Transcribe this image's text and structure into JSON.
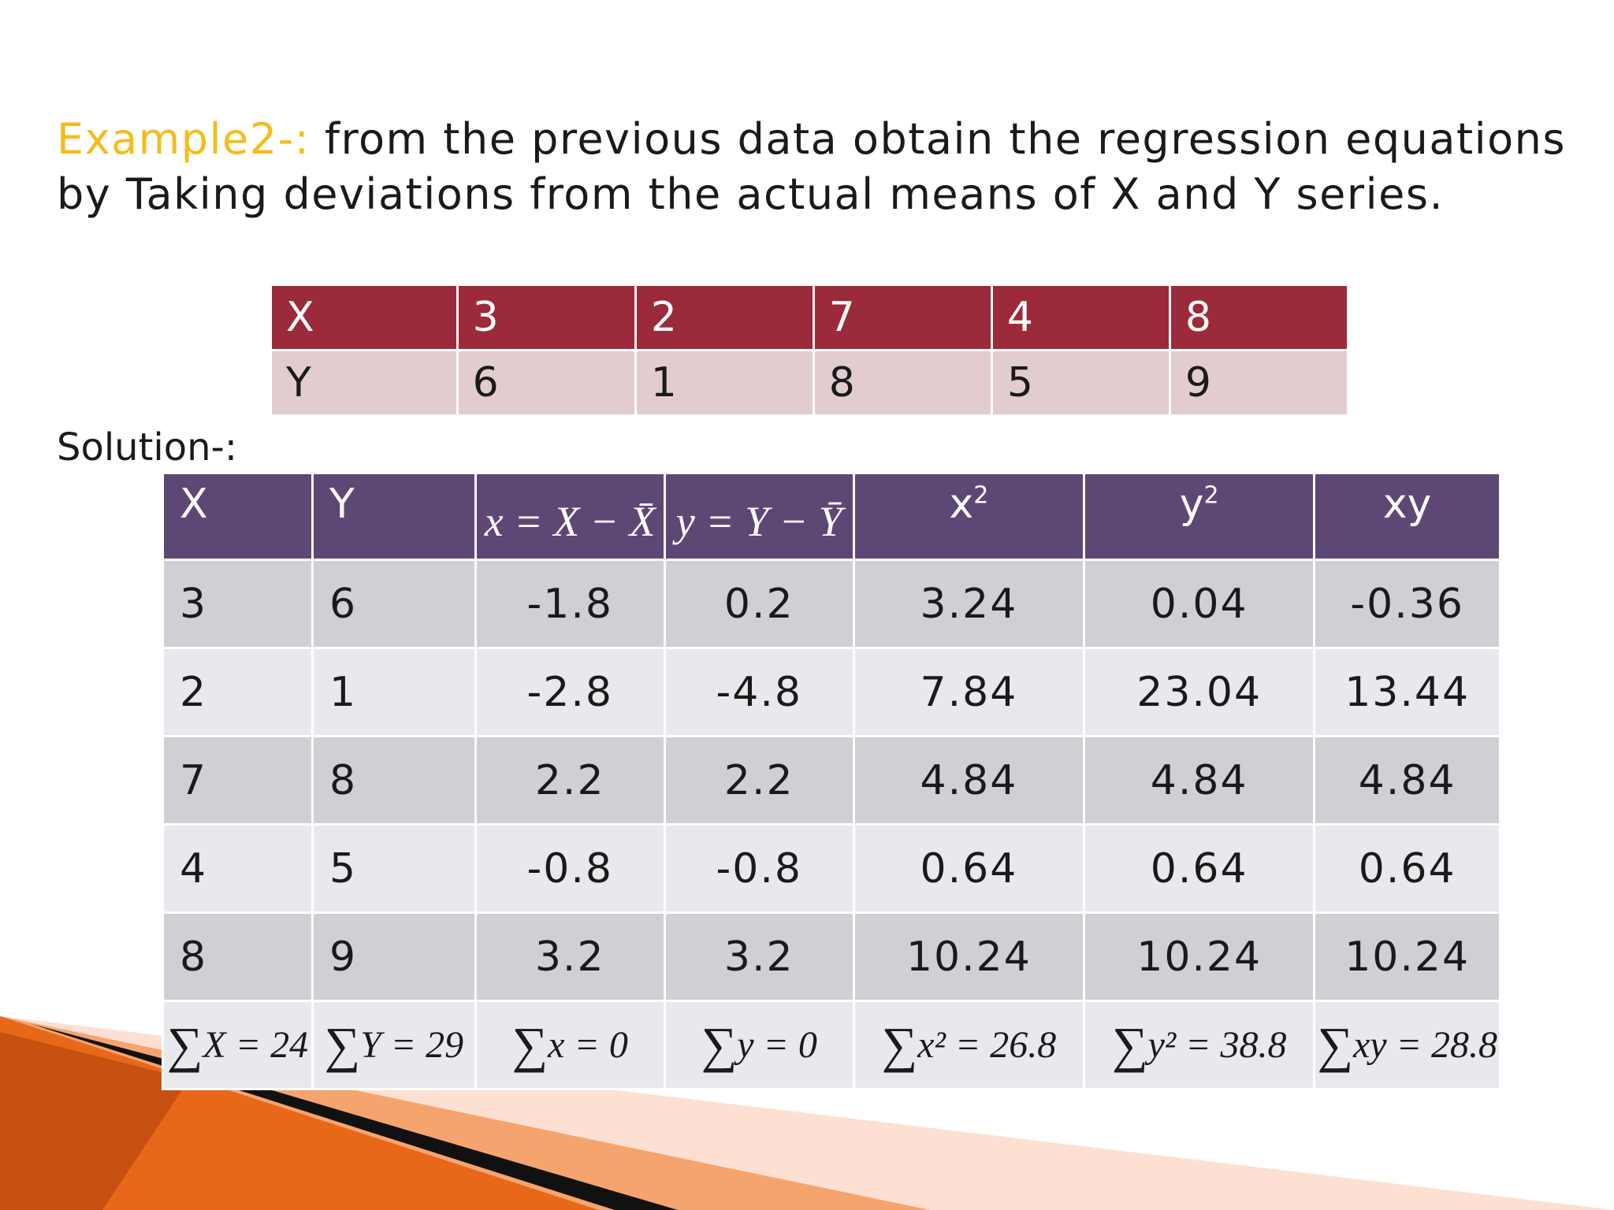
{
  "heading": {
    "label": "Example2-:",
    "text": " from the previous data obtain the regression equations by Taking deviations from the actual means of X and Y series."
  },
  "data_table": {
    "header": [
      "X",
      "3",
      "2",
      "7",
      "4",
      "8"
    ],
    "row": [
      "Y",
      "6",
      "1",
      "8",
      "5",
      "9"
    ]
  },
  "solution_label": "Solution-:",
  "solution_table": {
    "headers": {
      "x": "X",
      "y": "Y",
      "dev_x": "x = X − X̄",
      "dev_y": "y = Y − Ȳ",
      "x2": "x",
      "x2_exp": "2",
      "y2": "y",
      "y2_exp": "2",
      "xy": "xy"
    },
    "rows": [
      [
        "3",
        "6",
        "-1.8",
        "0.2",
        "3.24",
        "0.04",
        "-0.36"
      ],
      [
        "2",
        "1",
        "-2.8",
        "-4.8",
        "7.84",
        "23.04",
        "13.44"
      ],
      [
        "7",
        "8",
        "2.2",
        "2.2",
        "4.84",
        "4.84",
        "4.84"
      ],
      [
        "4",
        "5",
        "-0.8",
        "-0.8",
        "0.64",
        "0.64",
        "0.64"
      ],
      [
        "8",
        "9",
        "3.2",
        "3.2",
        "10.24",
        "10.24",
        "10.24"
      ]
    ],
    "sums": {
      "sigma": "∑",
      "x": "X = 24",
      "y": "Y = 29",
      "dev_x": "x = 0",
      "dev_y": "y = 0",
      "x2": "x² = 26.8",
      "y2": "y² = 38.8",
      "xy": "xy = 28.8"
    }
  },
  "colors": {
    "label": "#f4bd1c",
    "data_header": "#9b2a3a",
    "data_row": "#e2ccd0",
    "solution_header": "#5d4775",
    "row_dark": "#d1ced6",
    "row_light": "#e9e8ed",
    "decoration_orange": "#e8681a"
  }
}
